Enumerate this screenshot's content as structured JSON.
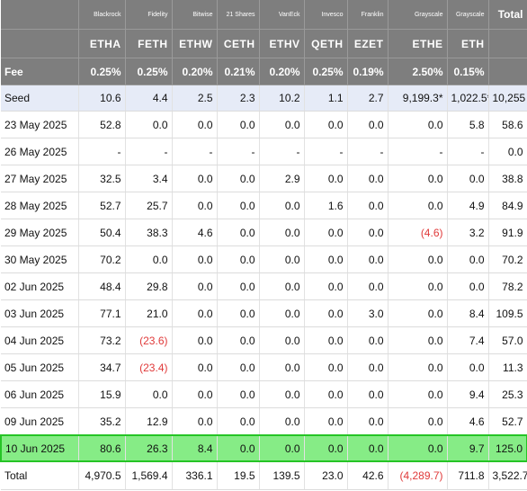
{
  "colors": {
    "header_bg": "#7e7e7e",
    "seed_bg": "#e6ebf7",
    "highlight_bg": "#86ec86",
    "highlight_border": "#26c426",
    "negative": "#e03a3a"
  },
  "header": {
    "issuers": [
      "Blackrock",
      "Fidelity",
      "Bitwise",
      "21 Shares",
      "VanEck",
      "Invesco",
      "Franklin",
      "Grayscale",
      "Grayscale"
    ],
    "total_label": "Total",
    "tickers": [
      "ETHA",
      "FETH",
      "ETHW",
      "CETH",
      "ETHV",
      "QETH",
      "EZET",
      "ETHE",
      "ETH"
    ],
    "fee_label": "Fee",
    "fees": [
      "0.25%",
      "0.25%",
      "0.20%",
      "0.21%",
      "0.20%",
      "0.25%",
      "0.19%",
      "2.50%",
      "0.15%"
    ]
  },
  "seed": {
    "label": "Seed",
    "values": [
      "10.6",
      "4.4",
      "2.5",
      "2.3",
      "10.2",
      "1.1",
      "2.7",
      "9,199.3*",
      "1,022.5*"
    ],
    "total": "10,255"
  },
  "rows": [
    {
      "date": "23 May 2025",
      "values": [
        "52.8",
        "0.0",
        "0.0",
        "0.0",
        "0.0",
        "0.0",
        "0.0",
        "0.0",
        "5.8"
      ],
      "total": "58.6"
    },
    {
      "date": "26 May 2025",
      "values": [
        "-",
        "-",
        "-",
        "-",
        "-",
        "-",
        "-",
        "-",
        "-"
      ],
      "total": "0.0"
    },
    {
      "date": "27 May 2025",
      "values": [
        "32.5",
        "3.4",
        "0.0",
        "0.0",
        "2.9",
        "0.0",
        "0.0",
        "0.0",
        "0.0"
      ],
      "total": "38.8"
    },
    {
      "date": "28 May 2025",
      "values": [
        "52.7",
        "25.7",
        "0.0",
        "0.0",
        "0.0",
        "1.6",
        "0.0",
        "0.0",
        "4.9"
      ],
      "total": "84.9"
    },
    {
      "date": "29 May 2025",
      "values": [
        "50.4",
        "38.3",
        "4.6",
        "0.0",
        "0.0",
        "0.0",
        "0.0",
        "(4.6)",
        "3.2"
      ],
      "total": "91.9"
    },
    {
      "date": "30 May 2025",
      "values": [
        "70.2",
        "0.0",
        "0.0",
        "0.0",
        "0.0",
        "0.0",
        "0.0",
        "0.0",
        "0.0"
      ],
      "total": "70.2"
    },
    {
      "date": "02 Jun 2025",
      "values": [
        "48.4",
        "29.8",
        "0.0",
        "0.0",
        "0.0",
        "0.0",
        "0.0",
        "0.0",
        "0.0"
      ],
      "total": "78.2"
    },
    {
      "date": "03 Jun 2025",
      "values": [
        "77.1",
        "21.0",
        "0.0",
        "0.0",
        "0.0",
        "0.0",
        "3.0",
        "0.0",
        "8.4"
      ],
      "total": "109.5"
    },
    {
      "date": "04 Jun 2025",
      "values": [
        "73.2",
        "(23.6)",
        "0.0",
        "0.0",
        "0.0",
        "0.0",
        "0.0",
        "0.0",
        "7.4"
      ],
      "total": "57.0"
    },
    {
      "date": "05 Jun 2025",
      "values": [
        "34.7",
        "(23.4)",
        "0.0",
        "0.0",
        "0.0",
        "0.0",
        "0.0",
        "0.0",
        "0.0"
      ],
      "total": "11.3"
    },
    {
      "date": "06 Jun 2025",
      "values": [
        "15.9",
        "0.0",
        "0.0",
        "0.0",
        "0.0",
        "0.0",
        "0.0",
        "0.0",
        "9.4"
      ],
      "total": "25.3"
    },
    {
      "date": "09 Jun 2025",
      "values": [
        "35.2",
        "12.9",
        "0.0",
        "0.0",
        "0.0",
        "0.0",
        "0.0",
        "0.0",
        "4.6"
      ],
      "total": "52.7"
    }
  ],
  "highlight": {
    "date": "10 Jun 2025",
    "values": [
      "80.6",
      "26.3",
      "8.4",
      "0.0",
      "0.0",
      "0.0",
      "0.0",
      "0.0",
      "9.7"
    ],
    "total": "125.0"
  },
  "totals": {
    "label": "Total",
    "values": [
      "4,970.5",
      "1,569.4",
      "336.1",
      "19.5",
      "139.5",
      "23.0",
      "42.6",
      "(4,289.7)",
      "711.8"
    ],
    "total": "3,522.7"
  }
}
